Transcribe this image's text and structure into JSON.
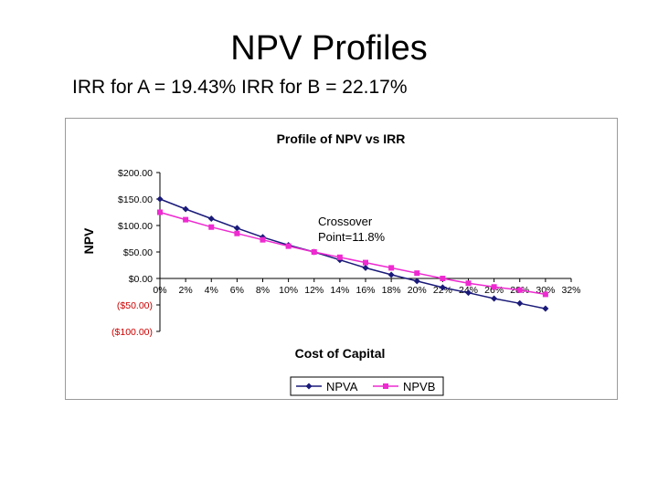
{
  "slide": {
    "title": "NPV Profiles",
    "subtitle": "IRR for A = 19.43% IRR for B = 22.17%"
  },
  "colors": {
    "npva": "#1a1a7a",
    "npvb": "#ee2ad0",
    "negative_tick": "#cc0000",
    "axis": "#000000",
    "frame_border": "#9a9a9a"
  },
  "chart_data": {
    "type": "line",
    "title": "Profile of NPV vs IRR",
    "xlabel": "Cost of Capital",
    "ylabel": "NPV",
    "xlim": [
      0,
      32
    ],
    "ylim": [
      -100,
      200
    ],
    "x_tick_labels": [
      "0%",
      "2%",
      "4%",
      "6%",
      "8%",
      "10%",
      "12%",
      "14%",
      "16%",
      "18%",
      "20%",
      "22%",
      "24%",
      "26%",
      "28%",
      "30%",
      "32%"
    ],
    "y_tick_labels": [
      "$200.00",
      "$150.00",
      "$100.00",
      "$50.00",
      "$0.00",
      "($50.00)",
      "($100.00)"
    ],
    "y_tick_values": [
      200,
      150,
      100,
      50,
      0,
      -50,
      -100
    ],
    "x": [
      0,
      2,
      4,
      6,
      8,
      10,
      12,
      14,
      16,
      18,
      20,
      22,
      24,
      26,
      28,
      30
    ],
    "series": [
      {
        "name": "NPVA",
        "marker": "diamond",
        "values": [
          150,
          131,
          113,
          95,
          78,
          63,
          50,
          35,
          20,
          7,
          -5,
          -17,
          -27,
          -38,
          -47,
          -57
        ]
      },
      {
        "name": "NPVB",
        "marker": "square",
        "values": [
          125,
          111,
          97,
          85,
          73,
          61,
          50,
          40,
          30,
          20,
          10,
          0,
          -9,
          -16,
          -22,
          -30
        ]
      }
    ],
    "annotation": {
      "lines": [
        "Crossover",
        "Point=11.8%"
      ]
    },
    "legend": "bottom",
    "grid": false
  }
}
